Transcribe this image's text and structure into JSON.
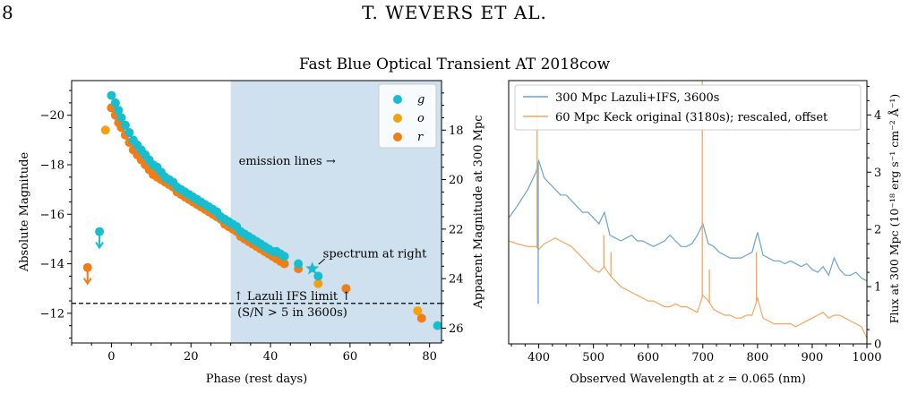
{
  "page": {
    "number": "8",
    "running_head": "T. WEVERS ET AL."
  },
  "figure": {
    "title": "Fast Blue Optical Transient AT 2018cow"
  },
  "chart_data": [
    {
      "type": "scatter",
      "xlabel": "Phase (rest days)",
      "ylabel": "Absolute Magnitude",
      "ylabel_right": "Apparent Magnitude at 300 Mpc",
      "xlim": [
        -10,
        83
      ],
      "ylim": [
        -21.4,
        -10.8
      ],
      "ylim_right": [
        16.0,
        26.6
      ],
      "yaxis_inverted": true,
      "xticks": [
        "0",
        "20",
        "40",
        "60",
        "80"
      ],
      "yticks": [
        "−20",
        "−18",
        "−16",
        "−14",
        "−12"
      ],
      "yticks_right": [
        "18",
        "20",
        "22",
        "24",
        "26"
      ],
      "legend_position": "top-right",
      "legend": [
        "g",
        "o",
        "r"
      ],
      "colors": {
        "g": "#17becf",
        "o": "#f5a10d",
        "r": "#ef7e17",
        "shade": "#cfe0ee",
        "limit_line": "#000000",
        "star": "#17becf"
      },
      "shaded_region": {
        "x_from": 30,
        "x_to": 83,
        "label": "emission lines →"
      },
      "series": [
        {
          "name": "g",
          "points": [
            [
              0.0,
              -20.8
            ],
            [
              1.0,
              -20.5
            ],
            [
              1.8,
              -20.2
            ],
            [
              2.5,
              -19.9
            ],
            [
              3.5,
              -19.6
            ],
            [
              4.5,
              -19.3
            ],
            [
              5.5,
              -19.0
            ],
            [
              6.5,
              -18.8
            ],
            [
              7.5,
              -18.6
            ],
            [
              8.5,
              -18.4
            ],
            [
              9.5,
              -18.2
            ],
            [
              10.5,
              -18.0
            ],
            [
              11.5,
              -17.9
            ],
            [
              12.5,
              -17.7
            ],
            [
              13.5,
              -17.5
            ],
            [
              14.5,
              -17.4
            ],
            [
              15.5,
              -17.3
            ],
            [
              16.5,
              -17.1
            ],
            [
              17.5,
              -17.0
            ],
            [
              18.5,
              -16.9
            ],
            [
              19.5,
              -16.8
            ],
            [
              20.5,
              -16.7
            ],
            [
              21.5,
              -16.6
            ],
            [
              22.5,
              -16.5
            ],
            [
              23.5,
              -16.4
            ],
            [
              24.5,
              -16.3
            ],
            [
              25.5,
              -16.2
            ],
            [
              26.5,
              -16.1
            ],
            [
              27.5,
              -15.9
            ],
            [
              28.5,
              -15.8
            ],
            [
              29.5,
              -15.7
            ],
            [
              30.5,
              -15.6
            ],
            [
              31.5,
              -15.5
            ],
            [
              32.5,
              -15.3
            ],
            [
              33.5,
              -15.2
            ],
            [
              34.5,
              -15.1
            ],
            [
              35.5,
              -15.0
            ],
            [
              36.5,
              -14.9
            ],
            [
              37.5,
              -14.8
            ],
            [
              38.5,
              -14.7
            ],
            [
              39.5,
              -14.6
            ],
            [
              40.5,
              -14.5
            ],
            [
              41.5,
              -14.5
            ],
            [
              42.5,
              -14.4
            ],
            [
              43.5,
              -14.3
            ],
            [
              47.0,
              -14.0
            ],
            [
              52.0,
              -13.5
            ],
            [
              82.0,
              -11.5
            ]
          ]
        },
        {
          "name": "o",
          "points": [
            [
              -1.5,
              -19.4
            ],
            [
              52.0,
              -13.2
            ],
            [
              77.0,
              -12.1
            ]
          ]
        },
        {
          "name": "r",
          "points": [
            [
              0.0,
              -20.3
            ],
            [
              1.0,
              -20.0
            ],
            [
              1.8,
              -19.7
            ],
            [
              2.5,
              -19.5
            ],
            [
              3.5,
              -19.2
            ],
            [
              4.5,
              -18.9
            ],
            [
              5.5,
              -18.6
            ],
            [
              6.5,
              -18.4
            ],
            [
              7.5,
              -18.2
            ],
            [
              8.5,
              -18.0
            ],
            [
              9.5,
              -17.8
            ],
            [
              10.5,
              -17.6
            ],
            [
              11.5,
              -17.5
            ],
            [
              12.5,
              -17.4
            ],
            [
              13.5,
              -17.3
            ],
            [
              14.5,
              -17.2
            ],
            [
              15.5,
              -17.1
            ],
            [
              16.5,
              -16.9
            ],
            [
              17.5,
              -16.8
            ],
            [
              18.5,
              -16.7
            ],
            [
              19.5,
              -16.6
            ],
            [
              20.5,
              -16.5
            ],
            [
              21.5,
              -16.4
            ],
            [
              22.5,
              -16.3
            ],
            [
              23.5,
              -16.2
            ],
            [
              24.5,
              -16.1
            ],
            [
              25.5,
              -16.0
            ],
            [
              26.5,
              -15.9
            ],
            [
              27.5,
              -15.8
            ],
            [
              28.5,
              -15.6
            ],
            [
              29.5,
              -15.5
            ],
            [
              30.5,
              -15.4
            ],
            [
              31.5,
              -15.3
            ],
            [
              32.5,
              -15.1
            ],
            [
              33.5,
              -15.0
            ],
            [
              34.5,
              -14.9
            ],
            [
              35.5,
              -14.8
            ],
            [
              36.5,
              -14.7
            ],
            [
              37.5,
              -14.6
            ],
            [
              38.5,
              -14.5
            ],
            [
              39.5,
              -14.4
            ],
            [
              40.5,
              -14.3
            ],
            [
              41.5,
              -14.2
            ],
            [
              42.5,
              -14.1
            ],
            [
              43.5,
              -14.0
            ],
            [
              47.0,
              -13.8
            ],
            [
              59.0,
              -13.0
            ],
            [
              78.0,
              -11.8
            ]
          ]
        }
      ],
      "upper_limits": [
        {
          "series": "g",
          "x": -3.0,
          "y": -15.3
        },
        {
          "series": "r",
          "x": -6.0,
          "y": -13.85
        }
      ],
      "star": {
        "x": 50.5,
        "y": -13.8,
        "label": "spectrum at right"
      },
      "limit_line": {
        "y": -12.4,
        "label": "↑  Lazuli IFS limit  ↑",
        "sublabel": "(S/N > 5 in 3600s)"
      }
    },
    {
      "type": "line",
      "xlabel": "Observed Wavelength at z = 0.065 (nm)",
      "xlabel_parts": {
        "prefix": "Observed Wavelength at ",
        "var": "z",
        "suffix": " = 0.065 (nm)"
      },
      "ylabel_right": "Flux at 300 Mpc (10⁻¹⁸ erg s⁻¹ cm⁻² Å⁻¹)",
      "xlim": [
        345,
        1000
      ],
      "ylim": [
        0,
        4.6
      ],
      "xticks": [
        "400",
        "500",
        "600",
        "700",
        "800",
        "900",
        "1000"
      ],
      "yticks_right": [
        "0",
        "1",
        "2",
        "3",
        "4"
      ],
      "legend_position": "top-left",
      "colors": {
        "lazuli": "#6aa3cc",
        "keck": "#f7a55a"
      },
      "series": [
        {
          "name": "300 Mpc Lazuli+IFS, 3600s",
          "x": [
            345,
            360,
            380,
            395,
            400,
            410,
            420,
            430,
            440,
            450,
            460,
            470,
            480,
            490,
            500,
            510,
            520,
            530,
            540,
            550,
            560,
            570,
            580,
            590,
            600,
            610,
            620,
            630,
            640,
            650,
            660,
            670,
            680,
            690,
            700,
            710,
            720,
            730,
            740,
            750,
            760,
            770,
            780,
            790,
            800,
            810,
            820,
            830,
            840,
            850,
            860,
            870,
            880,
            890,
            900,
            910,
            920,
            930,
            940,
            950,
            960,
            970,
            980,
            990,
            1000
          ],
          "y": [
            2.2,
            2.4,
            2.7,
            3.0,
            3.2,
            2.9,
            2.8,
            2.7,
            2.6,
            2.6,
            2.5,
            2.4,
            2.3,
            2.3,
            2.2,
            2.1,
            2.3,
            1.9,
            1.85,
            1.8,
            1.85,
            1.9,
            1.8,
            1.8,
            1.75,
            1.7,
            1.75,
            1.8,
            1.9,
            1.8,
            1.7,
            1.7,
            1.75,
            1.9,
            2.1,
            1.75,
            1.7,
            1.6,
            1.55,
            1.5,
            1.5,
            1.5,
            1.55,
            1.6,
            1.95,
            1.55,
            1.5,
            1.45,
            1.45,
            1.4,
            1.45,
            1.4,
            1.35,
            1.4,
            1.3,
            1.25,
            1.35,
            1.2,
            1.5,
            1.3,
            1.2,
            1.2,
            1.25,
            1.15,
            1.1
          ]
        },
        {
          "name": "60 Mpc Keck original (3180s); rescaled, offset",
          "x": [
            345,
            360,
            380,
            395,
            400,
            410,
            420,
            430,
            440,
            450,
            460,
            470,
            480,
            490,
            500,
            510,
            520,
            530,
            540,
            550,
            560,
            570,
            580,
            590,
            600,
            610,
            620,
            630,
            640,
            650,
            660,
            670,
            680,
            690,
            700,
            710,
            720,
            730,
            740,
            750,
            760,
            770,
            780,
            790,
            800,
            810,
            820,
            830,
            840,
            850,
            860,
            870,
            880,
            890,
            900,
            910,
            920,
            930,
            940,
            950,
            960,
            970,
            980,
            990,
            1000
          ],
          "y": [
            1.8,
            1.75,
            1.7,
            1.7,
            1.65,
            1.75,
            1.8,
            1.85,
            1.8,
            1.75,
            1.7,
            1.6,
            1.5,
            1.4,
            1.3,
            1.25,
            1.35,
            1.2,
            1.1,
            1.0,
            0.95,
            0.9,
            0.85,
            0.8,
            0.75,
            0.75,
            0.7,
            0.65,
            0.65,
            0.7,
            0.65,
            0.65,
            0.6,
            0.55,
            0.85,
            0.75,
            0.6,
            0.55,
            0.5,
            0.5,
            0.45,
            0.45,
            0.5,
            0.5,
            0.8,
            0.45,
            0.4,
            0.35,
            0.35,
            0.35,
            0.35,
            0.3,
            0.35,
            0.4,
            0.45,
            0.5,
            0.55,
            0.45,
            0.5,
            0.5,
            0.45,
            0.4,
            0.35,
            0.3,
            0.1
          ]
        }
      ],
      "emission_spikes": [
        {
          "series": "60 Mpc Keck original (3180s); rescaled, offset",
          "x": 397,
          "peak": 4.3
        },
        {
          "series": "60 Mpc Keck original (3180s); rescaled, offset",
          "x": 519,
          "peak": 1.9
        },
        {
          "series": "60 Mpc Keck original (3180s); rescaled, offset",
          "x": 532,
          "peak": 1.6
        },
        {
          "series": "60 Mpc Keck original (3180s); rescaled, offset",
          "x": 699,
          "peak": 4.6
        },
        {
          "series": "60 Mpc Keck original (3180s); rescaled, offset",
          "x": 712,
          "peak": 1.3
        },
        {
          "series": "60 Mpc Keck original (3180s); rescaled, offset",
          "x": 798,
          "peak": 1.6
        },
        {
          "series": "300 Mpc Lazuli+IFS, 3600s",
          "x": 399,
          "peak": 0.7
        }
      ]
    }
  ]
}
